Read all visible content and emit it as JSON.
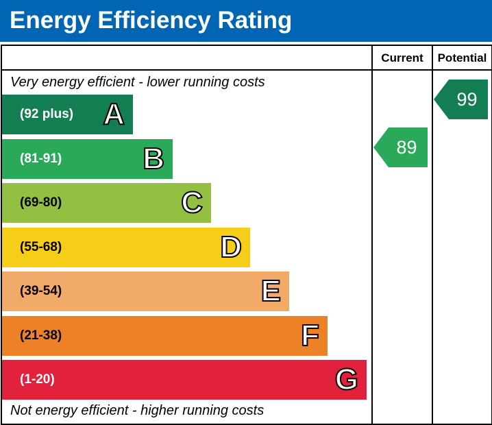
{
  "title": "Energy Efficiency Rating",
  "columns": {
    "current": "Current",
    "potential": "Potential"
  },
  "notes": {
    "top": "Very energy efficient - lower running costs",
    "bottom": "Not energy efficient - higher running costs"
  },
  "chart_data": {
    "type": "bar",
    "title": "Energy Efficiency Rating",
    "categories": [
      "A",
      "B",
      "C",
      "D",
      "E",
      "F",
      "G"
    ],
    "bands": [
      {
        "letter": "A",
        "range": "(92 plus)",
        "min": 92,
        "max": 100,
        "color": "#137e52"
      },
      {
        "letter": "B",
        "range": "(81-91)",
        "min": 81,
        "max": 91,
        "color": "#2aa95b"
      },
      {
        "letter": "C",
        "range": "(69-80)",
        "min": 69,
        "max": 80,
        "color": "#93bf42"
      },
      {
        "letter": "D",
        "range": "(55-68)",
        "min": 55,
        "max": 68,
        "color": "#f6cd17"
      },
      {
        "letter": "E",
        "range": "(39-54)",
        "min": 39,
        "max": 54,
        "color": "#f2aa6b"
      },
      {
        "letter": "F",
        "range": "(21-38)",
        "min": 21,
        "max": 38,
        "color": "#ec8128"
      },
      {
        "letter": "G",
        "range": "(1-20)",
        "min": 1,
        "max": 20,
        "color": "#e2213c"
      }
    ],
    "current": {
      "label": "Current",
      "value": 89,
      "band": "B",
      "color": "#2aa95b"
    },
    "potential": {
      "label": "Potential",
      "value": 99,
      "band": "A",
      "color": "#137e52"
    }
  }
}
